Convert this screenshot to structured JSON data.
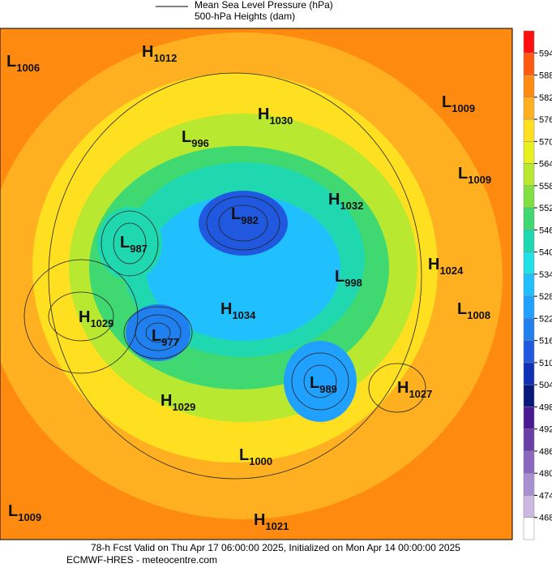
{
  "header": {
    "legend_line": "Mean Sea Level Pressure (hPa)",
    "legend_fill": "500-hPa Heights (dam)"
  },
  "centers": [
    {
      "letter": "L",
      "value": 1006
    },
    {
      "letter": "H",
      "value": 1012
    },
    {
      "letter": "H",
      "value": 1030
    },
    {
      "letter": "L",
      "value": 1009
    },
    {
      "letter": "L",
      "value": 996
    },
    {
      "letter": "L",
      "value": 1009
    },
    {
      "letter": "H",
      "value": 1032
    },
    {
      "letter": "L",
      "value": 982
    },
    {
      "letter": "L",
      "value": 987
    },
    {
      "letter": "H",
      "value": 1024
    },
    {
      "letter": "L",
      "value": 998
    },
    {
      "letter": "H",
      "value": 1029
    },
    {
      "letter": "H",
      "value": 1034
    },
    {
      "letter": "L",
      "value": 1008
    },
    {
      "letter": "L",
      "value": 977
    },
    {
      "letter": "L",
      "value": 989
    },
    {
      "letter": "H",
      "value": 1027
    },
    {
      "letter": "H",
      "value": 1029
    },
    {
      "letter": "L",
      "value": 1000
    },
    {
      "letter": "L",
      "value": 1009
    },
    {
      "letter": "H",
      "value": 1021
    }
  ],
  "colorbar": {
    "ticks": [
      594,
      588,
      582,
      576,
      570,
      564,
      558,
      552,
      546,
      540,
      534,
      528,
      522,
      516,
      510,
      504,
      498,
      492,
      486,
      480,
      474,
      468
    ],
    "colors": [
      "#ff1010",
      "#ff5a10",
      "#ff8a10",
      "#ffb020",
      "#ffe020",
      "#e8f020",
      "#b8e830",
      "#80e040",
      "#40d870",
      "#20d8b0",
      "#20e0e8",
      "#20c0ff",
      "#20a0ff",
      "#2080f0",
      "#2058e0",
      "#1030b8",
      "#081878",
      "#4a1890",
      "#6a40a8",
      "#8a68c0",
      "#a890d0",
      "#ccb8e0",
      "#ffffff"
    ]
  },
  "footer": {
    "line1": "78-h Fcst Valid on Thu Apr 17 06:00:00 2025, Initialized on Mon Apr 14 00:00:00 2025",
    "line2": "ECMWF-HRES  - meteocentre.com"
  }
}
